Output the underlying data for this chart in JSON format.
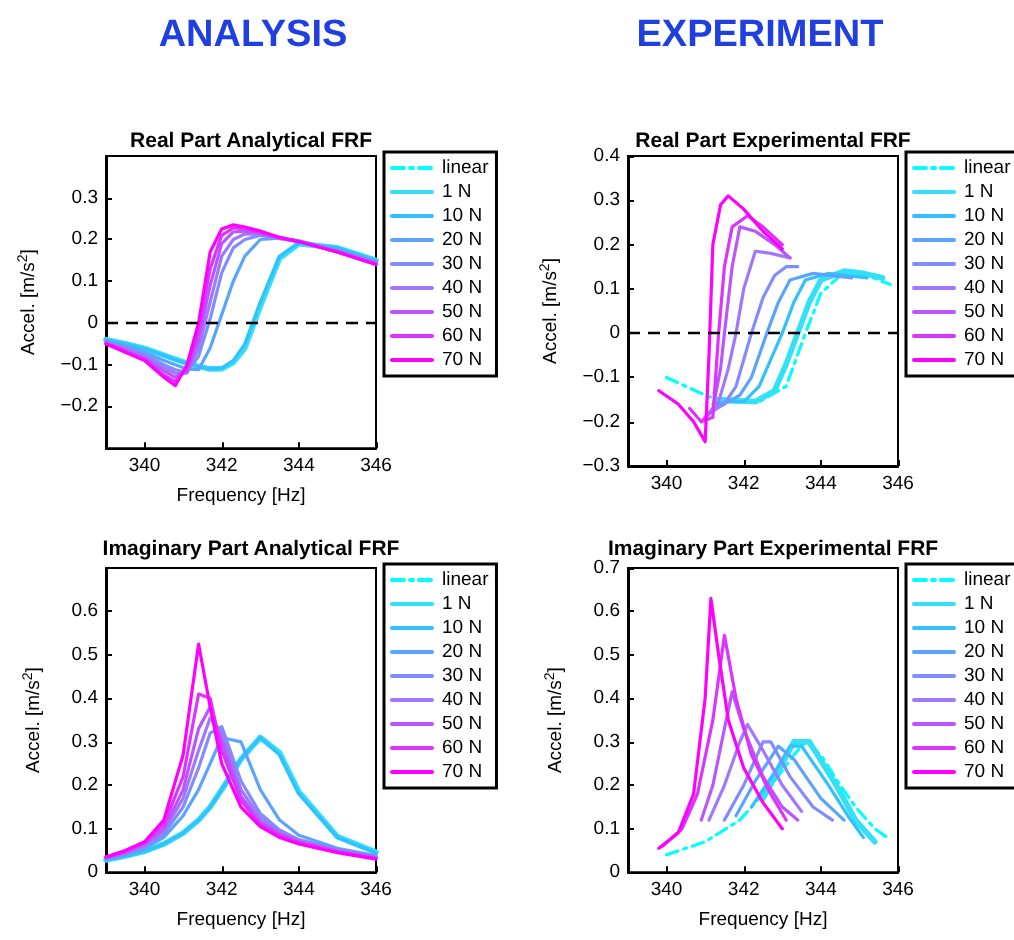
{
  "chart_data": [
    {
      "type": "line",
      "title": "Real Part Analytical FRF",
      "annotations": [
        "ANALYSIS"
      ],
      "xlabel": "Frequency [Hz]",
      "ylabel": "Accel. [m/s$^{2}$]",
      "xlim": [
        339,
        346
      ],
      "xticks": [
        340,
        342,
        344,
        346
      ],
      "ylim": [
        -0.3,
        0.4
      ],
      "yticks": [
        -0.2,
        -0.1,
        0,
        0.1,
        0.2,
        0.3
      ],
      "grid": false,
      "legend": "right",
      "ref_lines": [
        {
          "axis": "y",
          "value": 0,
          "color": "#000000",
          "line_style": "dashed"
        }
      ],
      "x": [
        339,
        339.5,
        340,
        340.5,
        340.8,
        341.1,
        341.4,
        341.7,
        342,
        342.3,
        342.6,
        343,
        343.5,
        344,
        345,
        346
      ],
      "series": [
        {
          "name": "linear",
          "color": "#00ffff",
          "line_style": "dashed",
          "values": [
            null,
            null,
            null,
            null,
            null,
            null,
            null,
            null,
            null,
            null,
            null,
            null,
            null,
            null,
            null,
            null
          ]
        },
        {
          "name": "1 N",
          "color": "#33e0f5",
          "values": [
            -0.04,
            -0.05,
            -0.061,
            -0.077,
            -0.087,
            -0.096,
            -0.104,
            -0.11,
            -0.11,
            -0.095,
            -0.06,
            0.04,
            0.155,
            0.19,
            0.18,
            0.15
          ]
        },
        {
          "name": "10 N",
          "color": "#33c0ff",
          "values": [
            -0.04,
            -0.05,
            -0.062,
            -0.078,
            -0.088,
            -0.097,
            -0.105,
            -0.11,
            -0.108,
            -0.09,
            -0.05,
            0.05,
            0.16,
            0.192,
            0.18,
            0.15
          ]
        },
        {
          "name": "20 N",
          "color": "#5aa4ff",
          "values": [
            -0.043,
            -0.055,
            -0.07,
            -0.09,
            -0.1,
            -0.11,
            -0.112,
            -0.06,
            0.02,
            0.1,
            0.16,
            0.2,
            0.203,
            0.197,
            0.175,
            0.147
          ]
        },
        {
          "name": "30 N",
          "color": "#808cff",
          "values": [
            -0.045,
            -0.058,
            -0.076,
            -0.1,
            -0.112,
            -0.118,
            -0.08,
            0.01,
            0.12,
            0.18,
            0.2,
            0.21,
            0.202,
            0.196,
            0.173,
            0.145
          ]
        },
        {
          "name": "40 N",
          "color": "#a078ff",
          "values": [
            -0.046,
            -0.062,
            -0.08,
            -0.108,
            -0.12,
            -0.12,
            -0.06,
            0.05,
            0.16,
            0.2,
            0.213,
            0.213,
            0.203,
            0.195,
            0.172,
            0.144
          ]
        },
        {
          "name": "50 N",
          "color": "#bb55ff",
          "values": [
            -0.048,
            -0.065,
            -0.085,
            -0.115,
            -0.13,
            -0.115,
            -0.04,
            0.09,
            0.19,
            0.218,
            0.22,
            0.215,
            0.204,
            0.195,
            0.17,
            0.142
          ]
        },
        {
          "name": "60 N",
          "color": "#dd33ff",
          "values": [
            -0.05,
            -0.068,
            -0.088,
            -0.125,
            -0.14,
            -0.11,
            -0.02,
            0.13,
            0.21,
            0.228,
            0.226,
            0.218,
            0.205,
            0.195,
            0.17,
            0.14
          ]
        },
        {
          "name": "70 N",
          "color": "#ff00ff",
          "values": [
            -0.05,
            -0.07,
            -0.09,
            -0.13,
            -0.15,
            -0.1,
            0.0,
            0.17,
            0.225,
            0.235,
            0.23,
            0.22,
            0.205,
            0.195,
            0.17,
            0.14
          ]
        }
      ]
    },
    {
      "type": "line",
      "title": "Real Part Experimental FRF",
      "annotations": [
        "EXPERIMENT"
      ],
      "ylabel": "Accel. [m/s$^{2}$]",
      "xlim": [
        339,
        346
      ],
      "xticks": [
        340,
        342,
        344,
        346
      ],
      "ylim": [
        -0.3,
        0.4
      ],
      "yticks": [
        -0.3,
        -0.2,
        -0.1,
        0,
        0.1,
        0.2,
        0.3,
        0.4
      ],
      "grid": false,
      "legend": "right",
      "ref_lines": [
        {
          "axis": "y",
          "value": 0,
          "color": "#000000",
          "line_style": "dashed"
        }
      ],
      "series": [
        {
          "name": "linear",
          "color": "#00ffff",
          "line_style": "dashed",
          "x": [
            340,
            341,
            341.5,
            342.4,
            343.1,
            343.6,
            344,
            344.5,
            345.2,
            345.8
          ],
          "values": [
            -0.1,
            -0.14,
            -0.155,
            -0.155,
            -0.12,
            0,
            0.09,
            0.13,
            0.13,
            0.11
          ]
        },
        {
          "name": "1 N",
          "color": "#33e0f5",
          "x": [
            341.3,
            341.8,
            342.3,
            342.8,
            343.1,
            343.4,
            343.7,
            344,
            344.6,
            345.1,
            345.6
          ],
          "values": [
            -0.15,
            -0.152,
            -0.155,
            -0.13,
            -0.07,
            0,
            0.07,
            0.12,
            0.14,
            0.135,
            0.125
          ]
        },
        {
          "name": "10 N",
          "color": "#33c0ff",
          "x": [
            341.2,
            341.6,
            342,
            342.4,
            342.7,
            343,
            343.3,
            343.6,
            344.2,
            344.7,
            345.2
          ],
          "values": [
            -0.16,
            -0.155,
            -0.155,
            -0.12,
            -0.06,
            0,
            0.07,
            0.12,
            0.135,
            0.13,
            0.125
          ]
        },
        {
          "name": "20 N",
          "color": "#5aa4ff",
          "x": [
            341.2,
            341.6,
            341.9,
            342.2,
            342.4,
            342.6,
            342.9,
            343.2,
            343.8,
            344.3,
            344.8
          ],
          "values": [
            -0.17,
            -0.155,
            -0.14,
            -0.1,
            -0.05,
            0,
            0.07,
            0.12,
            0.135,
            0.13,
            0.125
          ]
        },
        {
          "name": "30 N",
          "color": "#808cff",
          "x": [
            341.1,
            341.5,
            341.8,
            342,
            342.2,
            342.5,
            342.8,
            343.1,
            343.4
          ],
          "values": [
            -0.18,
            -0.16,
            -0.12,
            -0.06,
            0,
            0.08,
            0.13,
            0.15,
            0.15
          ]
        },
        {
          "name": "40 N",
          "color": "#a078ff",
          "x": [
            341,
            341.3,
            341.6,
            341.8,
            342,
            342.3,
            342.7,
            343.2
          ],
          "values": [
            -0.19,
            -0.17,
            -0.08,
            0,
            0.1,
            0.185,
            0.18,
            0.17
          ]
        },
        {
          "name": "50 N",
          "color": "#bb55ff",
          "x": [
            340.9,
            341.2,
            341.4,
            341.5,
            341.7,
            341.9,
            342.3,
            342.8,
            343.2
          ],
          "values": [
            -0.2,
            -0.17,
            -0.08,
            0,
            0.15,
            0.24,
            0.23,
            0.2,
            0.17
          ]
        },
        {
          "name": "60 N",
          "color": "#dd33ff",
          "x": [
            340.6,
            340.9,
            341.2,
            341.35,
            341.5,
            341.7,
            342.1,
            342.5,
            343
          ],
          "values": [
            -0.17,
            -0.2,
            -0.19,
            0,
            0.15,
            0.24,
            0.265,
            0.24,
            0.2
          ]
        },
        {
          "name": "70 N",
          "color": "#ff00ff",
          "x": [
            339.8,
            340.3,
            340.7,
            341,
            341.1,
            341.2,
            341.4,
            341.6,
            342,
            342.5,
            343
          ],
          "values": [
            -0.13,
            -0.16,
            -0.2,
            -0.245,
            -0.05,
            0.2,
            0.29,
            0.31,
            0.28,
            0.23,
            0.19
          ]
        }
      ]
    },
    {
      "type": "line",
      "title": "Imaginary Part Analytical FRF",
      "xlabel": "Frequency [Hz]",
      "ylabel": "Accel. [m/s$^{2}$]",
      "xlim": [
        339,
        346
      ],
      "xticks": [
        340,
        342,
        344,
        346
      ],
      "ylim": [
        0,
        0.7
      ],
      "yticks": [
        0,
        0.1,
        0.2,
        0.3,
        0.4,
        0.5,
        0.6
      ],
      "grid": false,
      "legend": "right",
      "x": [
        339,
        339.5,
        340,
        340.5,
        341,
        341.4,
        341.7,
        342,
        342.5,
        343,
        343.5,
        344,
        345,
        346
      ],
      "series": [
        {
          "name": "linear",
          "color": "#00ffff",
          "line_style": "dashed",
          "values": [
            null,
            null,
            null,
            null,
            null,
            null,
            null,
            null,
            null,
            null,
            null,
            null,
            null,
            null
          ]
        },
        {
          "name": "1 N",
          "color": "#33e0f5",
          "values": [
            0.028,
            0.037,
            0.048,
            0.065,
            0.09,
            0.12,
            0.15,
            0.19,
            0.26,
            0.31,
            0.275,
            0.185,
            0.082,
            0.046
          ]
        },
        {
          "name": "10 N",
          "color": "#33c0ff",
          "values": [
            0.028,
            0.037,
            0.048,
            0.065,
            0.09,
            0.12,
            0.15,
            0.19,
            0.26,
            0.31,
            0.27,
            0.18,
            0.08,
            0.045
          ]
        },
        {
          "name": "20 N",
          "color": "#5aa4ff",
          "values": [
            0.03,
            0.04,
            0.055,
            0.08,
            0.13,
            0.19,
            0.25,
            0.31,
            0.3,
            0.19,
            0.12,
            0.085,
            0.055,
            0.038
          ]
        },
        {
          "name": "30 N",
          "color": "#808cff",
          "values": [
            0.031,
            0.042,
            0.058,
            0.088,
            0.15,
            0.24,
            0.32,
            0.335,
            0.21,
            0.135,
            0.097,
            0.075,
            0.052,
            0.036
          ]
        },
        {
          "name": "40 N",
          "color": "#a078ff",
          "values": [
            0.032,
            0.044,
            0.062,
            0.095,
            0.17,
            0.28,
            0.355,
            0.32,
            0.19,
            0.125,
            0.092,
            0.072,
            0.05,
            0.035
          ]
        },
        {
          "name": "50 N",
          "color": "#bb55ff",
          "values": [
            0.033,
            0.046,
            0.065,
            0.1,
            0.19,
            0.33,
            0.38,
            0.3,
            0.175,
            0.115,
            0.088,
            0.07,
            0.048,
            0.033
          ]
        },
        {
          "name": "60 N",
          "color": "#dd33ff",
          "values": [
            0.035,
            0.048,
            0.068,
            0.11,
            0.22,
            0.41,
            0.4,
            0.28,
            0.165,
            0.11,
            0.085,
            0.068,
            0.047,
            0.032
          ]
        },
        {
          "name": "70 N",
          "color": "#ff00ff",
          "values": [
            0.035,
            0.05,
            0.07,
            0.12,
            0.27,
            0.525,
            0.38,
            0.25,
            0.15,
            0.105,
            0.08,
            0.065,
            0.045,
            0.03
          ]
        }
      ]
    },
    {
      "type": "line",
      "title": "Imaginary Part Experimental FRF",
      "xlabel": "Frequency [Hz]",
      "ylabel": "Accel. [m/s$^{2}$]",
      "xlim": [
        339,
        346
      ],
      "xticks": [
        340,
        342,
        344,
        346
      ],
      "ylim": [
        0,
        0.7
      ],
      "yticks": [
        0,
        0.1,
        0.2,
        0.3,
        0.4,
        0.5,
        0.6,
        0.7
      ],
      "grid": false,
      "legend": "right",
      "series": [
        {
          "name": "linear",
          "color": "#00ffff",
          "line_style": "dashed",
          "x": [
            340,
            341,
            341.9,
            342.8,
            343.3,
            343.6,
            344,
            344.5,
            344.9,
            345.4,
            345.8
          ],
          "values": [
            0.04,
            0.07,
            0.12,
            0.21,
            0.27,
            0.3,
            0.27,
            0.2,
            0.15,
            0.1,
            0.075
          ]
        },
        {
          "name": "1 N",
          "color": "#33e0f5",
          "x": [
            342.5,
            343,
            343.3,
            343.7,
            344.4,
            344.9,
            345.4
          ],
          "values": [
            0.17,
            0.25,
            0.3,
            0.3,
            0.2,
            0.12,
            0.07
          ]
        },
        {
          "name": "10 N",
          "color": "#33c0ff",
          "x": [
            342.2,
            342.8,
            343.2,
            343.5,
            344.2,
            344.7,
            345.1
          ],
          "values": [
            0.15,
            0.23,
            0.29,
            0.29,
            0.2,
            0.13,
            0.08
          ]
        },
        {
          "name": "20 N",
          "color": "#5aa4ff",
          "x": [
            341.8,
            342.3,
            342.9,
            343.3,
            344,
            344.6
          ],
          "values": [
            0.13,
            0.21,
            0.29,
            0.26,
            0.17,
            0.12
          ]
        },
        {
          "name": "30 N",
          "color": "#808cff",
          "x": [
            341.5,
            342,
            342.5,
            342.7,
            343.2,
            343.8,
            344.3
          ],
          "values": [
            0.12,
            0.2,
            0.3,
            0.3,
            0.22,
            0.15,
            0.12
          ]
        },
        {
          "name": "40 N",
          "color": "#a078ff",
          "x": [
            341.1,
            341.5,
            341.9,
            342.1,
            342.5,
            343,
            343.5
          ],
          "values": [
            0.12,
            0.2,
            0.3,
            0.34,
            0.28,
            0.2,
            0.14
          ]
        },
        {
          "name": "50 N",
          "color": "#bb55ff",
          "x": [
            340.9,
            341.2,
            341.5,
            341.7,
            342,
            342.5,
            343,
            343.4
          ],
          "values": [
            0.12,
            0.2,
            0.33,
            0.415,
            0.33,
            0.22,
            0.15,
            0.12
          ]
        },
        {
          "name": "60 N",
          "color": "#dd33ff",
          "x": [
            339.9,
            340.4,
            340.8,
            341.2,
            341.5,
            341.8,
            342.2,
            342.7,
            343.1
          ],
          "values": [
            0.06,
            0.1,
            0.18,
            0.35,
            0.545,
            0.4,
            0.27,
            0.18,
            0.12
          ]
        },
        {
          "name": "70 N",
          "color": "#ff00ff",
          "x": [
            339.8,
            340.3,
            340.7,
            341,
            341.15,
            341.35,
            341.6,
            342,
            342.5,
            343
          ],
          "values": [
            0.055,
            0.09,
            0.18,
            0.4,
            0.63,
            0.5,
            0.35,
            0.24,
            0.16,
            0.1
          ]
        }
      ]
    }
  ]
}
